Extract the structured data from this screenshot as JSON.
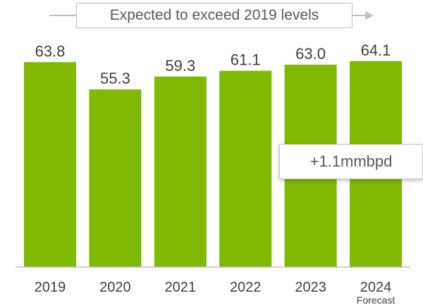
{
  "banner": {
    "text": "Expected to exceed 2019 levels"
  },
  "callout": {
    "text": "+1.1mmbpd"
  },
  "chart_data": {
    "type": "bar",
    "categories": [
      "2019",
      "2020",
      "2021",
      "2022",
      "2023",
      "2024"
    ],
    "category_sublabels": [
      "",
      "",
      "",
      "",
      "",
      "Forecast"
    ],
    "values": [
      63.8,
      55.3,
      59.3,
      61.1,
      63.0,
      64.1
    ],
    "value_labels": [
      "63.8",
      "55.3",
      "59.3",
      "61.1",
      "63.0",
      "64.1"
    ],
    "title": "",
    "xlabel": "",
    "ylabel": "",
    "ylim": [
      0,
      64.1
    ],
    "grid": false,
    "legend": "none",
    "bar_color": "#7fba00"
  }
}
